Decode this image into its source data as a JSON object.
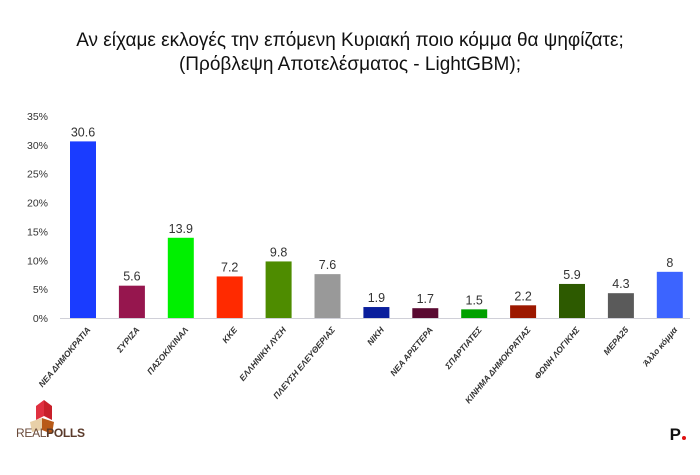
{
  "chart_data": {
    "type": "bar",
    "title": "Αν είχαμε εκλογές την επόμενη Κυριακή ποιο κόμμα θα ψηφίζατε;",
    "subtitle": "(Πρόβλεψη Αποτελέσματος - LightGBM);",
    "categories": [
      "ΝΕΑ ΔΗΜΟΚΡΑΤΙΑ",
      "ΣΥΡΙΖΑ",
      "ΠΑΣΟΚ/ΚΙΝΑΛ",
      "ΚΚΕ",
      "ΕΛΛΗΝΙΚΗ ΛΥΣΗ",
      "ΠΛΕΥΣΗ ΕΛΕΥΘΕΡΙΑΣ",
      "ΝΙΚΗ",
      "ΝΕΑ ΑΡΙΣΤΕΡΑ",
      "ΣΠΑΡΤΙΑΤΕΣ",
      "ΚΙΝΗΜΑ ΔΗΜΟΚΡΑΤΙΑΣ",
      "ΦΩΝΗ ΛΟΓΙΚΗΣ",
      "ΜΕΡΑ25",
      "Άλλο κόμμα"
    ],
    "values": [
      30.6,
      5.6,
      13.9,
      7.2,
      9.8,
      7.6,
      1.9,
      1.7,
      1.5,
      2.2,
      5.9,
      4.3,
      8
    ],
    "value_labels": [
      "30.6",
      "5.6",
      "13.9",
      "7.2",
      "9.8",
      "7.6",
      "1.9",
      "1.7",
      "1.5",
      "2.2",
      "5.9",
      "4.3",
      "8"
    ],
    "colors": [
      "#1a3cff",
      "#96164e",
      "#00f000",
      "#ff2a00",
      "#4e8c00",
      "#999999",
      "#0a1e9c",
      "#5a0a32",
      "#00a000",
      "#9c1800",
      "#2d5a00",
      "#5a5a5a",
      "#3c64ff"
    ],
    "ylim": [
      0,
      35
    ],
    "yticks": [
      "0%",
      "5%",
      "10%",
      "15%",
      "20%",
      "25%",
      "30%",
      "35%"
    ],
    "grid": false
  },
  "branding": {
    "left_logo": "REALPOLLS",
    "right_logo": "P."
  }
}
